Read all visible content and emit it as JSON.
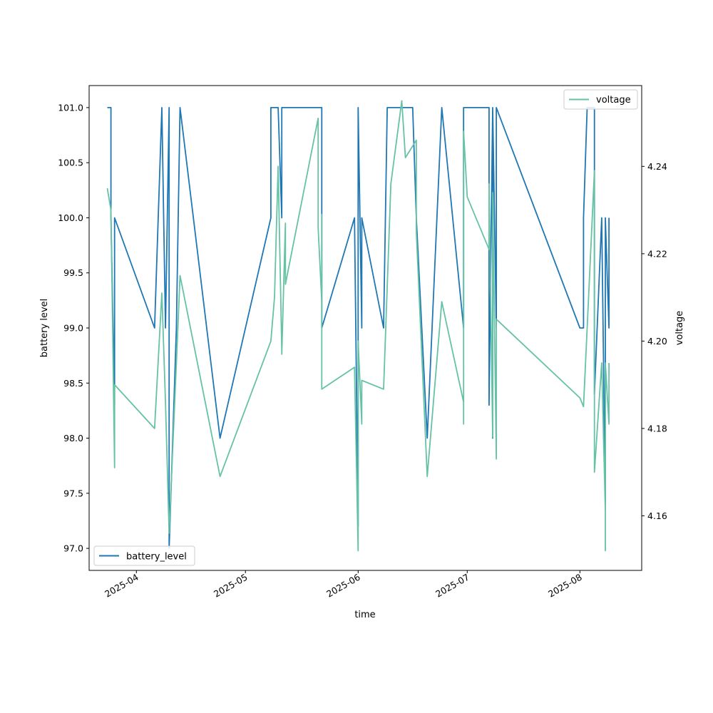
{
  "chart_data": {
    "type": "line",
    "xlabel": "time",
    "ylabel_left": "battery level",
    "ylabel_right": "voltage",
    "x_ticks": [
      "2025-04",
      "2025-05",
      "2025-06",
      "2025-07",
      "2025-08"
    ],
    "x_range": [
      "2025-03-19",
      "2025-08-18"
    ],
    "y_left_range": [
      96.8,
      101.2
    ],
    "y_left_ticks": [
      "97.0",
      "97.5",
      "98.0",
      "98.5",
      "99.0",
      "99.5",
      "100.0",
      "100.5",
      "101.0"
    ],
    "y_right_range": [
      4.1475,
      4.2585
    ],
    "y_right_ticks": [
      "4.16",
      "4.18",
      "4.20",
      "4.22",
      "4.24"
    ],
    "grid": false,
    "legend_left": {
      "placement": "lower-left",
      "label": "battery_level"
    },
    "legend_right": {
      "placement": "upper-right",
      "label": "voltage"
    },
    "series": [
      {
        "name": "battery_level",
        "axis": "left",
        "color": "#1f77b4",
        "points": [
          [
            "2025-03-24",
            101.0
          ],
          [
            "2025-03-25",
            101.0
          ],
          [
            "2025-03-25",
            100.0
          ],
          [
            "2025-03-26",
            98.3
          ],
          [
            "2025-03-26",
            100.0
          ],
          [
            "2025-04-06",
            99.0
          ],
          [
            "2025-04-08",
            101.0
          ],
          [
            "2025-04-09",
            99.0
          ],
          [
            "2025-04-10",
            101.0
          ],
          [
            "2025-04-10",
            97.0
          ],
          [
            "2025-04-12",
            99.0
          ],
          [
            "2025-04-13",
            101.0
          ],
          [
            "2025-04-24",
            98.0
          ],
          [
            "2025-05-08",
            100.0
          ],
          [
            "2025-05-08",
            101.0
          ],
          [
            "2025-05-10",
            101.0
          ],
          [
            "2025-05-11",
            100.0
          ],
          [
            "2025-05-11",
            101.0
          ],
          [
            "2025-05-21",
            101.0
          ],
          [
            "2025-05-22",
            101.0
          ],
          [
            "2025-05-22",
            99.0
          ],
          [
            "2025-05-31",
            100.0
          ],
          [
            "2025-06-01",
            97.2
          ],
          [
            "2025-06-01",
            101.0
          ],
          [
            "2025-06-02",
            99.0
          ],
          [
            "2025-06-02",
            100.0
          ],
          [
            "2025-06-08",
            99.0
          ],
          [
            "2025-06-09",
            101.0
          ],
          [
            "2025-06-16",
            101.0
          ],
          [
            "2025-06-16",
            101.0
          ],
          [
            "2025-06-17",
            100.0
          ],
          [
            "2025-06-20",
            98.0
          ],
          [
            "2025-06-24",
            101.0
          ],
          [
            "2025-06-30",
            99.0
          ],
          [
            "2025-06-30",
            101.0
          ],
          [
            "2025-07-07",
            101.0
          ],
          [
            "2025-07-07",
            98.3
          ],
          [
            "2025-07-08",
            101.0
          ],
          [
            "2025-07-08",
            98.0
          ],
          [
            "2025-07-08",
            101.0
          ],
          [
            "2025-07-09",
            99.0
          ],
          [
            "2025-07-09",
            101.0
          ],
          [
            "2025-08-01",
            99.0
          ],
          [
            "2025-08-02",
            99.0
          ],
          [
            "2025-08-02",
            100.0
          ],
          [
            "2025-08-03",
            101.0
          ],
          [
            "2025-08-05",
            101.0
          ],
          [
            "2025-08-05",
            98.4
          ],
          [
            "2025-08-07",
            100.0
          ],
          [
            "2025-08-08",
            97.4
          ],
          [
            "2025-08-08",
            100.0
          ],
          [
            "2025-08-09",
            99.0
          ],
          [
            "2025-08-09",
            100.0
          ]
        ]
      },
      {
        "name": "voltage",
        "axis": "right",
        "color": "#66c2a5",
        "points": [
          [
            "2025-03-24",
            4.235
          ],
          [
            "2025-03-25",
            4.23
          ],
          [
            "2025-03-26",
            4.171
          ],
          [
            "2025-03-26",
            4.19
          ],
          [
            "2025-04-06",
            4.18
          ],
          [
            "2025-04-08",
            4.211
          ],
          [
            "2025-04-09",
            4.186
          ],
          [
            "2025-04-10",
            4.156
          ],
          [
            "2025-04-12",
            4.195
          ],
          [
            "2025-04-13",
            4.215
          ],
          [
            "2025-04-24",
            4.169
          ],
          [
            "2025-05-08",
            4.2
          ],
          [
            "2025-05-09",
            4.21
          ],
          [
            "2025-05-10",
            4.24
          ],
          [
            "2025-05-11",
            4.198
          ],
          [
            "2025-05-11",
            4.197
          ],
          [
            "2025-05-12",
            4.227
          ],
          [
            "2025-05-12",
            4.213
          ],
          [
            "2025-05-21",
            4.251
          ],
          [
            "2025-05-21",
            4.226
          ],
          [
            "2025-05-22",
            4.209
          ],
          [
            "2025-05-22",
            4.229
          ],
          [
            "2025-05-22",
            4.189
          ],
          [
            "2025-05-31",
            4.194
          ],
          [
            "2025-06-01",
            4.152
          ],
          [
            "2025-06-01",
            4.2
          ],
          [
            "2025-06-02",
            4.181
          ],
          [
            "2025-06-02",
            4.191
          ],
          [
            "2025-06-08",
            4.189
          ],
          [
            "2025-06-10",
            4.236
          ],
          [
            "2025-06-13",
            4.255
          ],
          [
            "2025-06-14",
            4.242
          ],
          [
            "2025-06-17",
            4.246
          ],
          [
            "2025-06-17",
            4.225
          ],
          [
            "2025-06-20",
            4.169
          ],
          [
            "2025-06-24",
            4.209
          ],
          [
            "2025-06-30",
            4.186
          ],
          [
            "2025-06-30",
            4.181
          ],
          [
            "2025-06-30",
            4.248
          ],
          [
            "2025-07-01",
            4.233
          ],
          [
            "2025-07-07",
            4.221
          ],
          [
            "2025-07-07",
            4.236
          ],
          [
            "2025-07-08",
            4.178
          ],
          [
            "2025-07-08",
            4.234
          ],
          [
            "2025-07-09",
            4.173
          ],
          [
            "2025-07-09",
            4.205
          ],
          [
            "2025-08-01",
            4.187
          ],
          [
            "2025-08-02",
            4.185
          ],
          [
            "2025-08-05",
            4.239
          ],
          [
            "2025-08-05",
            4.17
          ],
          [
            "2025-08-07",
            4.195
          ],
          [
            "2025-08-08",
            4.161
          ],
          [
            "2025-08-08",
            4.152
          ],
          [
            "2025-08-08",
            4.195
          ],
          [
            "2025-08-09",
            4.181
          ],
          [
            "2025-08-09",
            4.195
          ]
        ]
      }
    ]
  }
}
